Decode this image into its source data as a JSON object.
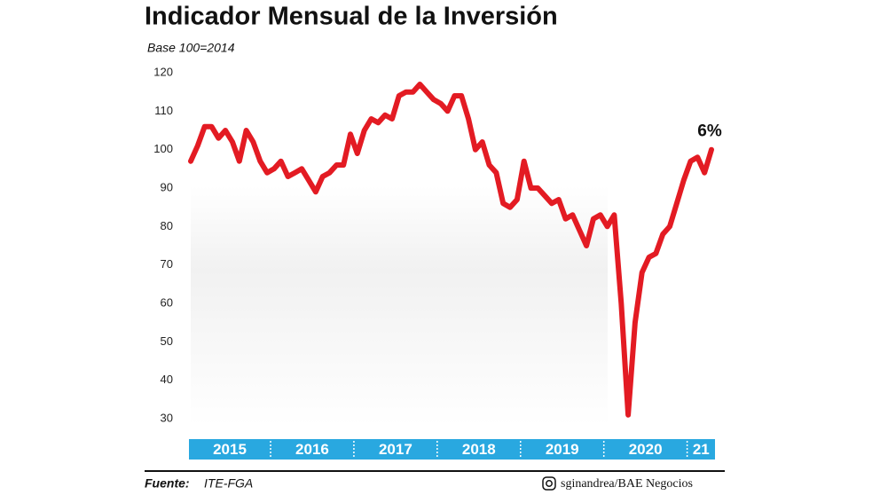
{
  "chart_data": {
    "type": "line",
    "title": "Indicador Mensual de la Inversión",
    "subtitle": "Base 100=2014",
    "year_labels": [
      "2015",
      "2016",
      "2017",
      "2018",
      "2019",
      "2020",
      "21"
    ],
    "values": [
      97,
      101,
      106,
      106,
      103,
      105,
      102,
      97,
      105,
      102,
      97,
      94,
      95,
      97,
      93,
      94,
      95,
      92,
      89,
      93,
      94,
      96,
      96,
      104,
      99,
      105,
      108,
      107,
      109,
      108,
      114,
      115,
      115,
      117,
      115,
      113,
      112,
      110,
      114,
      114,
      108,
      100,
      102,
      96,
      94,
      86,
      85,
      87,
      97,
      90,
      90,
      88,
      86,
      87,
      82,
      83,
      79,
      75,
      82,
      83,
      80,
      83,
      60,
      31,
      55,
      68,
      72,
      73,
      78,
      80,
      86,
      92,
      97,
      98,
      94,
      100
    ],
    "color": "#e31b23",
    "band_color": "#29a8e0",
    "ylim": [
      30,
      120
    ],
    "yticks": [
      30,
      40,
      50,
      60,
      70,
      80,
      90,
      100,
      110,
      120
    ],
    "end_annotation": "6%",
    "source_label": "Fuente:",
    "source": "ITE-FGA",
    "credit": "sginandrea/BAE Negocios"
  }
}
